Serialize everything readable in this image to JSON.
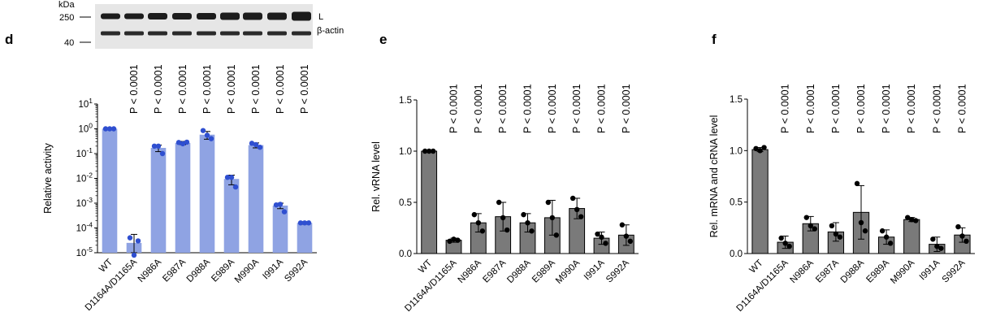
{
  "blot": {
    "unit": "kDa",
    "markers": [
      "250",
      "40"
    ],
    "bands": [
      "L",
      "β-actin"
    ]
  },
  "pvalue_label": "P < 0.0001",
  "chart_data": [
    {
      "panel": "d",
      "type": "bar",
      "scale": "log",
      "ylabel": "Relative activity",
      "ylim": [
        1e-05,
        10
      ],
      "yticks": [
        {
          "base": "10",
          "exp": "1"
        },
        {
          "base": "10",
          "exp": "0"
        },
        {
          "base": "10",
          "exp": "-1"
        },
        {
          "base": "10",
          "exp": "-2"
        },
        {
          "base": "10",
          "exp": "-3"
        },
        {
          "base": "10",
          "exp": "-4"
        },
        {
          "base": "10",
          "exp": "-5"
        }
      ],
      "categories": [
        "WT",
        "D1164A/D1165A",
        "N986A",
        "E987A",
        "D988A",
        "E989A",
        "M990A",
        "I991A",
        "S992A"
      ],
      "values": [
        1.0,
        2.5e-05,
        0.17,
        0.27,
        0.58,
        0.0095,
        0.22,
        0.0008,
        0.00016
      ],
      "errors": [
        0.0,
        3e-05,
        0.05,
        0.04,
        0.2,
        0.004,
        0.05,
        0.0002,
        2e-05
      ],
      "points": [
        [
          1,
          1,
          1
        ],
        [
          4e-05,
          8e-06,
          3e-05
        ],
        [
          0.2,
          0.2,
          0.1
        ],
        [
          0.28,
          0.25,
          0.29
        ],
        [
          0.85,
          0.55,
          0.4
        ],
        [
          0.011,
          0.011,
          0.0045
        ],
        [
          0.26,
          0.23,
          0.18
        ],
        [
          0.00085,
          0.0009,
          0.00045
        ],
        [
          0.00016,
          0.00016,
          0.00016
        ]
      ],
      "colors": {
        "bar": "#8fa3e3",
        "point": "#2f4fd0"
      }
    },
    {
      "panel": "e",
      "type": "bar",
      "scale": "linear",
      "ylabel": "Rel. vRNA level",
      "ylim": [
        0,
        1.5
      ],
      "yticks": [
        "0.0",
        "0.5",
        "1.0",
        "1.5"
      ],
      "categories": [
        "WT",
        "D1164A/D1165A",
        "N986A",
        "E987A",
        "D988A",
        "E989A",
        "M990A",
        "I991A",
        "S992A"
      ],
      "values": [
        1.0,
        0.13,
        0.3,
        0.36,
        0.3,
        0.35,
        0.44,
        0.15,
        0.18
      ],
      "errors": [
        0.0,
        0.02,
        0.09,
        0.14,
        0.09,
        0.17,
        0.1,
        0.06,
        0.1
      ],
      "points": [
        [
          1,
          1,
          1
        ],
        [
          0.12,
          0.14,
          0.13
        ],
        [
          0.38,
          0.3,
          0.22
        ],
        [
          0.5,
          0.35,
          0.23
        ],
        [
          0.38,
          0.3,
          0.22
        ],
        [
          0.5,
          0.35,
          0.18
        ],
        [
          0.54,
          0.43,
          0.36
        ],
        [
          0.19,
          0.16,
          0.1
        ],
        [
          0.28,
          0.17,
          0.12
        ]
      ],
      "colors": {
        "bar": "#7a7a7a",
        "point": "#000000"
      }
    },
    {
      "panel": "f",
      "type": "bar",
      "scale": "linear",
      "ylabel": "Rel. mRNA and cRNA level",
      "ylim": [
        0,
        1.5
      ],
      "yticks": [
        "0.0",
        "0.5",
        "1.0",
        "1.5"
      ],
      "categories": [
        "WT",
        "D1164A/D1165A",
        "N986A",
        "E987A",
        "D988A",
        "E989A",
        "M990A",
        "I991A",
        "S992A"
      ],
      "values": [
        1.01,
        0.11,
        0.29,
        0.21,
        0.4,
        0.16,
        0.33,
        0.09,
        0.18
      ],
      "errors": [
        0.02,
        0.06,
        0.07,
        0.09,
        0.26,
        0.07,
        0.02,
        0.07,
        0.07
      ],
      "points": [
        [
          1.02,
          1.0,
          1.03
        ],
        [
          0.15,
          0.1,
          0.07
        ],
        [
          0.35,
          0.27,
          0.24
        ],
        [
          0.27,
          0.19,
          0.16
        ],
        [
          0.68,
          0.3,
          0.22
        ],
        [
          0.22,
          0.16,
          0.1
        ],
        [
          0.35,
          0.33,
          0.32
        ],
        [
          0.14,
          0.07,
          0.05
        ],
        [
          0.26,
          0.17,
          0.12
        ]
      ],
      "colors": {
        "bar": "#7a7a7a",
        "point": "#000000"
      }
    }
  ]
}
